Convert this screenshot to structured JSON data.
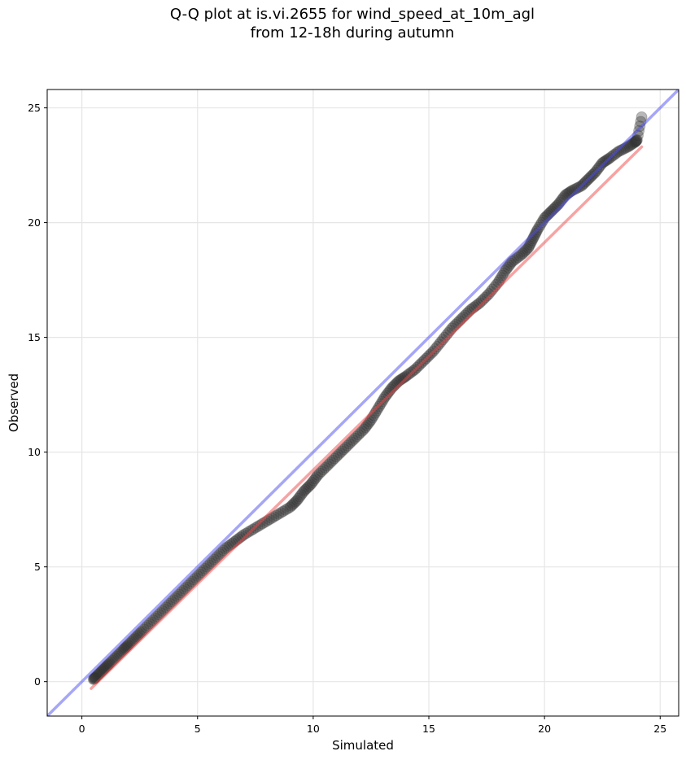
{
  "title": {
    "line1": "Q-Q plot at is.vi.2655 for wind_speed_at_10m_agl",
    "line2": "from 12-18h during autumn"
  },
  "colors": {
    "points": "#333333",
    "identity_line": "#4d4df2",
    "fit_line": "#f04848",
    "grid": "#e6e6e6"
  },
  "chart_data": {
    "type": "scatter",
    "xlabel": "Simulated",
    "ylabel": "Observed",
    "xlim": [
      -1.5,
      25.8
    ],
    "ylim": [
      -1.5,
      25.8
    ],
    "xticks": [
      0,
      5,
      10,
      15,
      20,
      25
    ],
    "yticks": [
      0,
      5,
      10,
      15,
      20,
      25
    ],
    "grid": true,
    "series": [
      {
        "type": "scatter",
        "points": [
          [
            0.5,
            0.1
          ],
          [
            0.6,
            0.2
          ],
          [
            0.8,
            0.4
          ],
          [
            1.0,
            0.6
          ],
          [
            1.2,
            0.8
          ],
          [
            1.5,
            1.1
          ],
          [
            1.8,
            1.4
          ],
          [
            2.0,
            1.6
          ],
          [
            2.3,
            1.9
          ],
          [
            2.6,
            2.2
          ],
          [
            3.0,
            2.6
          ],
          [
            3.4,
            3.0
          ],
          [
            3.8,
            3.4
          ],
          [
            4.2,
            3.8
          ],
          [
            4.6,
            4.2
          ],
          [
            5.0,
            4.6
          ],
          [
            5.4,
            5.0
          ],
          [
            5.8,
            5.4
          ],
          [
            6.2,
            5.8
          ],
          [
            6.6,
            6.1
          ],
          [
            7.0,
            6.4
          ],
          [
            7.5,
            6.7
          ],
          [
            8.0,
            7.0
          ],
          [
            8.5,
            7.3
          ],
          [
            9.0,
            7.6
          ],
          [
            9.3,
            7.9
          ],
          [
            9.6,
            8.3
          ],
          [
            9.9,
            8.6
          ],
          [
            10.2,
            9.0
          ],
          [
            10.6,
            9.4
          ],
          [
            11.0,
            9.8
          ],
          [
            11.4,
            10.2
          ],
          [
            11.8,
            10.6
          ],
          [
            12.2,
            11.0
          ],
          [
            12.5,
            11.4
          ],
          [
            12.8,
            11.9
          ],
          [
            13.1,
            12.4
          ],
          [
            13.4,
            12.8
          ],
          [
            13.7,
            13.1
          ],
          [
            14.0,
            13.3
          ],
          [
            14.4,
            13.6
          ],
          [
            14.8,
            14.0
          ],
          [
            15.2,
            14.4
          ],
          [
            15.6,
            14.9
          ],
          [
            16.0,
            15.4
          ],
          [
            16.4,
            15.8
          ],
          [
            16.8,
            16.2
          ],
          [
            17.2,
            16.5
          ],
          [
            17.6,
            16.9
          ],
          [
            18.0,
            17.4
          ],
          [
            18.3,
            17.9
          ],
          [
            18.6,
            18.3
          ],
          [
            19.0,
            18.6
          ],
          [
            19.3,
            18.9
          ],
          [
            19.5,
            19.3
          ],
          [
            19.7,
            19.7
          ],
          [
            20.0,
            20.2
          ],
          [
            20.3,
            20.5
          ],
          [
            20.6,
            20.8
          ],
          [
            20.9,
            21.2
          ],
          [
            21.2,
            21.4
          ],
          [
            21.6,
            21.6
          ],
          [
            21.9,
            21.9
          ],
          [
            22.2,
            22.2
          ],
          [
            22.5,
            22.6
          ],
          [
            22.8,
            22.8
          ],
          [
            23.2,
            23.1
          ],
          [
            23.6,
            23.3
          ],
          [
            23.9,
            23.5
          ],
          [
            24.0,
            23.6
          ],
          [
            24.2,
            24.6
          ]
        ]
      },
      {
        "type": "line",
        "role": "identity",
        "points": [
          [
            -1.5,
            -1.5
          ],
          [
            25.8,
            25.8
          ]
        ]
      },
      {
        "type": "line",
        "role": "fit",
        "points": [
          [
            0.4,
            -0.3
          ],
          [
            24.2,
            23.3
          ]
        ]
      }
    ]
  }
}
